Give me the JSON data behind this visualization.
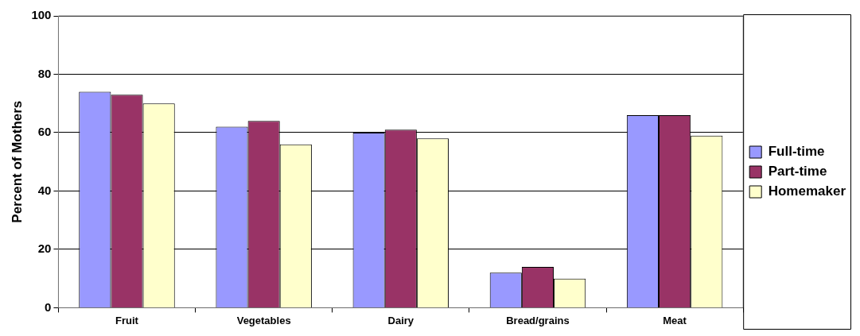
{
  "chart_data": {
    "type": "bar",
    "ylabel": "Percent of Mothers",
    "categories": [
      "Fruit",
      "Vegetables",
      "Dairy",
      "Bread/grains",
      "Meat"
    ],
    "series": [
      {
        "name": "Full-time",
        "color": "#9999ff",
        "values": [
          74,
          62,
          60,
          12,
          66
        ]
      },
      {
        "name": "Part-time",
        "color": "#993366",
        "values": [
          73,
          64,
          61,
          14,
          66
        ]
      },
      {
        "name": "Homemaker",
        "color": "#ffffcc",
        "values": [
          70,
          56,
          58,
          10,
          59
        ]
      }
    ],
    "ylim": [
      0,
      100
    ],
    "yticks": [
      0,
      20,
      40,
      60,
      80,
      100
    ],
    "grid": "y",
    "legend": "right"
  }
}
